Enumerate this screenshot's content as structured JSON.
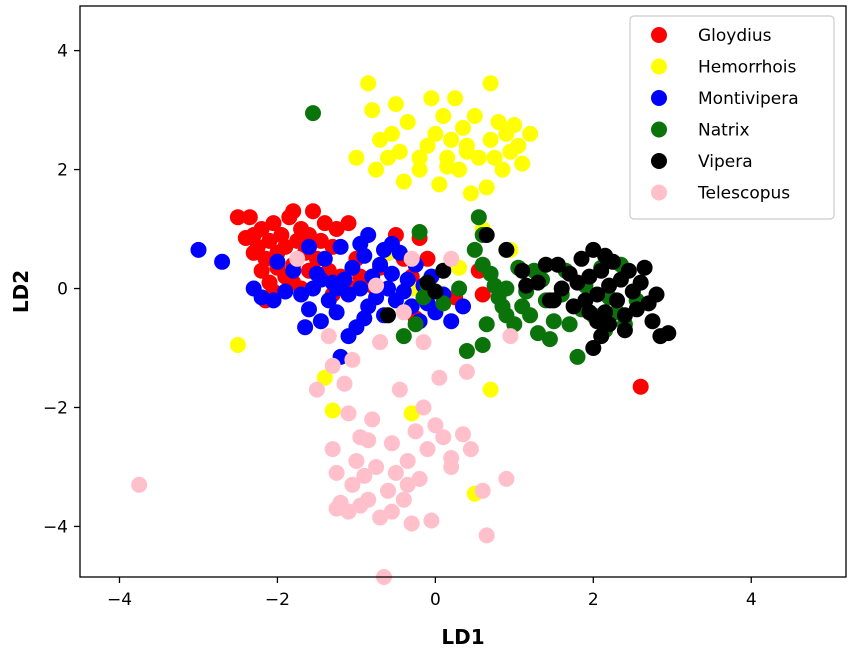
{
  "chart_data": {
    "type": "scatter",
    "xlabel": "LD1",
    "ylabel": "LD2",
    "xlim": [
      -4.5,
      5.2
    ],
    "ylim": [
      -4.85,
      4.75
    ],
    "xticks": [
      -4,
      -2,
      0,
      2,
      4
    ],
    "yticks": [
      -4,
      -2,
      0,
      2,
      4
    ],
    "legend_position": "top-right",
    "series": [
      {
        "name": "Gloydius",
        "color": "#ff0000",
        "points": [
          [
            -2.35,
            1.2
          ],
          [
            -2.3,
            0.9
          ],
          [
            -2.25,
            0.7
          ],
          [
            -2.2,
            1.0
          ],
          [
            -2.15,
            0.5
          ],
          [
            -2.1,
            0.8
          ],
          [
            -2.05,
            1.1
          ],
          [
            -2.0,
            0.6
          ],
          [
            -1.95,
            0.9
          ],
          [
            -1.9,
            0.7
          ],
          [
            -1.85,
            1.2
          ],
          [
            -1.8,
            0.4
          ],
          [
            -1.75,
            0.8
          ],
          [
            -1.7,
            1.0
          ],
          [
            -1.65,
            0.6
          ],
          [
            -1.6,
            0.9
          ],
          [
            -1.55,
            1.3
          ],
          [
            -1.5,
            0.5
          ],
          [
            -1.45,
            0.8
          ],
          [
            -1.4,
            1.1
          ],
          [
            -1.35,
            0.3
          ],
          [
            -1.3,
            0.7
          ],
          [
            -1.25,
            1.0
          ],
          [
            -1.2,
            0.2
          ],
          [
            -2.3,
            0.6
          ],
          [
            -2.2,
            0.3
          ],
          [
            -2.1,
            0.1
          ],
          [
            -2.0,
            0.35
          ],
          [
            -1.9,
            0.2
          ],
          [
            -1.8,
            0.1
          ],
          [
            -1.7,
            0.0
          ],
          [
            -2.4,
            0.85
          ],
          [
            -1.6,
            0.3
          ],
          [
            -1.0,
            0.5
          ],
          [
            -0.95,
            0.2
          ],
          [
            -1.05,
            0.0
          ],
          [
            -0.6,
            0.6
          ],
          [
            -0.5,
            0.9
          ],
          [
            -0.4,
            0.5
          ],
          [
            -0.2,
            0.85
          ],
          [
            -0.3,
            0.2
          ],
          [
            -1.1,
            1.1
          ],
          [
            -1.3,
            -0.1
          ],
          [
            -2.05,
            -0.05
          ],
          [
            -2.15,
            -0.2
          ],
          [
            -0.8,
            0.05
          ],
          [
            -0.7,
            0.35
          ],
          [
            -0.25,
            -0.5
          ],
          [
            -0.1,
            0.5
          ],
          [
            0.55,
            0.3
          ],
          [
            0.6,
            -0.1
          ],
          [
            0.25,
            -0.15
          ],
          [
            2.6,
            -1.65
          ],
          [
            -1.8,
            1.3
          ],
          [
            -2.5,
            1.2
          ]
        ]
      },
      {
        "name": "Hemorrhois",
        "color": "#ffff00",
        "points": [
          [
            -0.85,
            3.45
          ],
          [
            -0.8,
            3.0
          ],
          [
            -0.7,
            2.5
          ],
          [
            -0.6,
            2.2
          ],
          [
            -0.75,
            2.0
          ],
          [
            -0.55,
            2.6
          ],
          [
            -0.5,
            3.1
          ],
          [
            -0.45,
            2.3
          ],
          [
            -0.4,
            1.8
          ],
          [
            -0.35,
            2.8
          ],
          [
            -0.2,
            2.0
          ],
          [
            -0.1,
            2.4
          ],
          [
            -0.05,
            3.2
          ],
          [
            0.0,
            2.6
          ],
          [
            0.05,
            1.75
          ],
          [
            0.1,
            2.9
          ],
          [
            0.15,
            2.2
          ],
          [
            0.2,
            2.5
          ],
          [
            0.25,
            3.2
          ],
          [
            0.3,
            2.0
          ],
          [
            0.35,
            2.7
          ],
          [
            0.4,
            2.4
          ],
          [
            0.45,
            1.6
          ],
          [
            0.5,
            2.9
          ],
          [
            0.55,
            2.2
          ],
          [
            0.65,
            1.7
          ],
          [
            0.7,
            2.5
          ],
          [
            0.75,
            2.2
          ],
          [
            0.8,
            2.8
          ],
          [
            0.85,
            2.0
          ],
          [
            0.9,
            2.6
          ],
          [
            0.95,
            2.3
          ],
          [
            1.0,
            2.75
          ],
          [
            1.05,
            2.4
          ],
          [
            1.1,
            2.1
          ],
          [
            1.2,
            2.6
          ],
          [
            0.7,
            3.45
          ],
          [
            -0.2,
            2.2
          ],
          [
            -1.0,
            2.2
          ],
          [
            0.15,
            2.05
          ],
          [
            0.4,
            2.3
          ],
          [
            -2.5,
            -0.95
          ],
          [
            -1.4,
            -1.5
          ],
          [
            -1.3,
            -2.05
          ],
          [
            -0.3,
            -2.1
          ],
          [
            0.5,
            -3.45
          ],
          [
            0.7,
            -1.7
          ],
          [
            0.95,
            0.65
          ],
          [
            0.6,
            1.0
          ],
          [
            -0.3,
            0.0
          ],
          [
            -0.6,
            0.6
          ],
          [
            0.3,
            0.35
          ]
        ]
      },
      {
        "name": "Montivipera",
        "color": "#0000ff",
        "points": [
          [
            -3.0,
            0.65
          ],
          [
            -2.7,
            0.45
          ],
          [
            -2.3,
            0.0
          ],
          [
            -2.2,
            -0.15
          ],
          [
            -2.05,
            -0.2
          ],
          [
            -2.0,
            0.45
          ],
          [
            -1.9,
            -0.05
          ],
          [
            -1.8,
            0.3
          ],
          [
            -1.7,
            -0.1
          ],
          [
            -1.65,
            -0.65
          ],
          [
            -1.6,
            -0.35
          ],
          [
            -1.55,
            0.0
          ],
          [
            -1.5,
            0.25
          ],
          [
            -1.45,
            -0.55
          ],
          [
            -1.4,
            0.5
          ],
          [
            -1.35,
            -0.2
          ],
          [
            -1.3,
            0.1
          ],
          [
            -1.25,
            -0.4
          ],
          [
            -1.2,
            0.7
          ],
          [
            -1.15,
            0.15
          ],
          [
            -1.1,
            -0.1
          ],
          [
            -1.05,
            0.35
          ],
          [
            -1.0,
            -0.65
          ],
          [
            -0.95,
            0.0
          ],
          [
            -0.9,
            0.55
          ],
          [
            -0.85,
            -0.3
          ],
          [
            -0.8,
            0.2
          ],
          [
            -0.75,
            -0.15
          ],
          [
            -0.7,
            0.4
          ],
          [
            -0.65,
            -0.45
          ],
          [
            -0.6,
            0.0
          ],
          [
            -0.55,
            0.25
          ],
          [
            -0.5,
            -0.2
          ],
          [
            -0.45,
            0.6
          ],
          [
            -0.4,
            -0.05
          ],
          [
            -0.35,
            0.15
          ],
          [
            -0.3,
            -0.3
          ],
          [
            -0.25,
            0.4
          ],
          [
            -0.2,
            -0.55
          ],
          [
            -0.15,
            0.05
          ],
          [
            -0.1,
            -0.25
          ],
          [
            -0.05,
            0.2
          ],
          [
            0.0,
            -0.4
          ],
          [
            0.1,
            -0.1
          ],
          [
            0.2,
            -0.55
          ],
          [
            0.35,
            -0.3
          ],
          [
            -1.1,
            -0.8
          ],
          [
            -1.2,
            -1.15
          ],
          [
            -0.95,
            0.75
          ],
          [
            -0.85,
            0.9
          ],
          [
            -1.6,
            0.7
          ],
          [
            -0.55,
            0.75
          ],
          [
            -1.25,
            0.0
          ],
          [
            -0.9,
            -0.5
          ],
          [
            -1.45,
            0.15
          ],
          [
            -0.65,
            0.65
          ]
        ]
      },
      {
        "name": "Natrix",
        "color": "#0a740a",
        "points": [
          [
            -1.55,
            2.95
          ],
          [
            0.55,
            1.2
          ],
          [
            0.6,
            0.9
          ],
          [
            0.5,
            0.65
          ],
          [
            0.6,
            0.4
          ],
          [
            0.7,
            0.25
          ],
          [
            0.75,
            0.05
          ],
          [
            0.8,
            -0.15
          ],
          [
            0.85,
            -0.3
          ],
          [
            0.9,
            -0.45
          ],
          [
            1.0,
            -0.6
          ],
          [
            1.1,
            -0.3
          ],
          [
            1.15,
            -0.05
          ],
          [
            1.2,
            -0.45
          ],
          [
            1.3,
            -0.75
          ],
          [
            1.35,
            0.15
          ],
          [
            1.4,
            -0.2
          ],
          [
            1.5,
            -0.55
          ],
          [
            1.6,
            -0.1
          ],
          [
            1.65,
            0.3
          ],
          [
            1.7,
            -0.6
          ],
          [
            1.8,
            -1.15
          ],
          [
            1.85,
            -0.35
          ],
          [
            1.9,
            0.05
          ],
          [
            2.0,
            -0.45
          ],
          [
            2.1,
            0.35
          ],
          [
            2.15,
            -0.7
          ],
          [
            2.2,
            -0.15
          ],
          [
            2.3,
            -0.4
          ],
          [
            2.35,
            0.4
          ],
          [
            2.4,
            -0.6
          ],
          [
            2.55,
            -0.2
          ],
          [
            -0.1,
            0.05
          ],
          [
            -0.15,
            -0.15
          ],
          [
            0.1,
            -0.25
          ],
          [
            -0.25,
            -0.6
          ],
          [
            0.3,
            0.0
          ],
          [
            0.65,
            -0.6
          ],
          [
            0.6,
            -0.95
          ],
          [
            1.45,
            -0.85
          ],
          [
            1.05,
            0.35
          ],
          [
            -0.2,
            0.95
          ],
          [
            -0.4,
            -0.8
          ],
          [
            0.9,
            0.0
          ],
          [
            1.25,
            0.3
          ],
          [
            0.4,
            -1.05
          ]
        ]
      },
      {
        "name": "Vipera",
        "color": "#000000",
        "points": [
          [
            0.65,
            0.9
          ],
          [
            0.9,
            0.65
          ],
          [
            1.1,
            0.3
          ],
          [
            1.15,
            0.05
          ],
          [
            1.3,
            0.1
          ],
          [
            1.4,
            0.4
          ],
          [
            1.45,
            -0.2
          ],
          [
            1.55,
            0.4
          ],
          [
            1.6,
            0.0
          ],
          [
            1.7,
            0.25
          ],
          [
            1.75,
            -0.3
          ],
          [
            1.8,
            0.1
          ],
          [
            1.85,
            0.5
          ],
          [
            1.9,
            -0.2
          ],
          [
            1.95,
            0.2
          ],
          [
            2.0,
            0.65
          ],
          [
            2.05,
            -0.1
          ],
          [
            2.1,
            0.3
          ],
          [
            2.15,
            -0.4
          ],
          [
            2.2,
            0.05
          ],
          [
            2.25,
            0.45
          ],
          [
            2.3,
            -0.2
          ],
          [
            2.35,
            0.15
          ],
          [
            2.4,
            -0.45
          ],
          [
            2.45,
            0.3
          ],
          [
            2.5,
            -0.05
          ],
          [
            2.55,
            -0.35
          ],
          [
            2.6,
            0.1
          ],
          [
            2.65,
            0.35
          ],
          [
            2.7,
            -0.25
          ],
          [
            2.75,
            -0.55
          ],
          [
            2.8,
            -0.1
          ],
          [
            2.85,
            -0.8
          ],
          [
            2.95,
            -0.75
          ],
          [
            2.1,
            -0.8
          ],
          [
            2.05,
            -0.55
          ],
          [
            1.95,
            -0.4
          ],
          [
            2.0,
            -1.0
          ],
          [
            2.2,
            -0.6
          ],
          [
            2.4,
            -0.7
          ],
          [
            1.5,
            -0.2
          ],
          [
            2.15,
            0.55
          ],
          [
            -0.6,
            -0.45
          ],
          [
            -0.1,
            0.1
          ],
          [
            0.0,
            -0.05
          ],
          [
            0.1,
            0.3
          ]
        ]
      },
      {
        "name": "Telescopus",
        "color": "#ffc0cb",
        "points": [
          [
            -3.75,
            -3.3
          ],
          [
            -1.75,
            0.5
          ],
          [
            -1.35,
            -0.8
          ],
          [
            -1.3,
            -1.3
          ],
          [
            -1.15,
            -1.6
          ],
          [
            -1.1,
            -2.1
          ],
          [
            -1.3,
            -2.7
          ],
          [
            -1.25,
            -3.1
          ],
          [
            -1.2,
            -3.6
          ],
          [
            -1.1,
            -3.75
          ],
          [
            -1.05,
            -3.3
          ],
          [
            -1.0,
            -2.9
          ],
          [
            -0.95,
            -2.5
          ],
          [
            -0.9,
            -3.15
          ],
          [
            -0.85,
            -3.55
          ],
          [
            -0.8,
            -2.2
          ],
          [
            -0.75,
            -3.0
          ],
          [
            -0.7,
            -3.85
          ],
          [
            -0.6,
            -3.4
          ],
          [
            -0.55,
            -2.6
          ],
          [
            -0.5,
            -3.1
          ],
          [
            -0.45,
            -1.7
          ],
          [
            -0.4,
            -3.55
          ],
          [
            -0.35,
            -2.9
          ],
          [
            -0.3,
            -3.95
          ],
          [
            -0.25,
            -2.4
          ],
          [
            -0.2,
            -3.2
          ],
          [
            -0.15,
            -2.0
          ],
          [
            -0.1,
            -2.7
          ],
          [
            -0.05,
            -3.9
          ],
          [
            0.0,
            -2.3
          ],
          [
            0.05,
            -1.5
          ],
          [
            0.1,
            -2.5
          ],
          [
            0.2,
            -2.85
          ],
          [
            0.35,
            -2.45
          ],
          [
            0.45,
            -2.7
          ],
          [
            0.6,
            -3.4
          ],
          [
            0.65,
            -4.15
          ],
          [
            0.9,
            -3.2
          ],
          [
            -1.5,
            -1.7
          ],
          [
            -1.05,
            -1.2
          ],
          [
            -0.55,
            -3.75
          ],
          [
            -0.85,
            -2.55
          ],
          [
            0.4,
            -1.4
          ],
          [
            -0.15,
            -0.9
          ],
          [
            -0.4,
            -0.4
          ],
          [
            0.2,
            0.5
          ],
          [
            -0.75,
            0.05
          ],
          [
            -0.3,
            0.5
          ],
          [
            -0.7,
            -0.9
          ],
          [
            0.95,
            -0.8
          ],
          [
            -0.65,
            -4.85
          ],
          [
            -1.25,
            -3.7
          ],
          [
            -0.95,
            -3.65
          ],
          [
            -0.35,
            -3.3
          ],
          [
            0.2,
            -3.0
          ]
        ]
      }
    ]
  }
}
